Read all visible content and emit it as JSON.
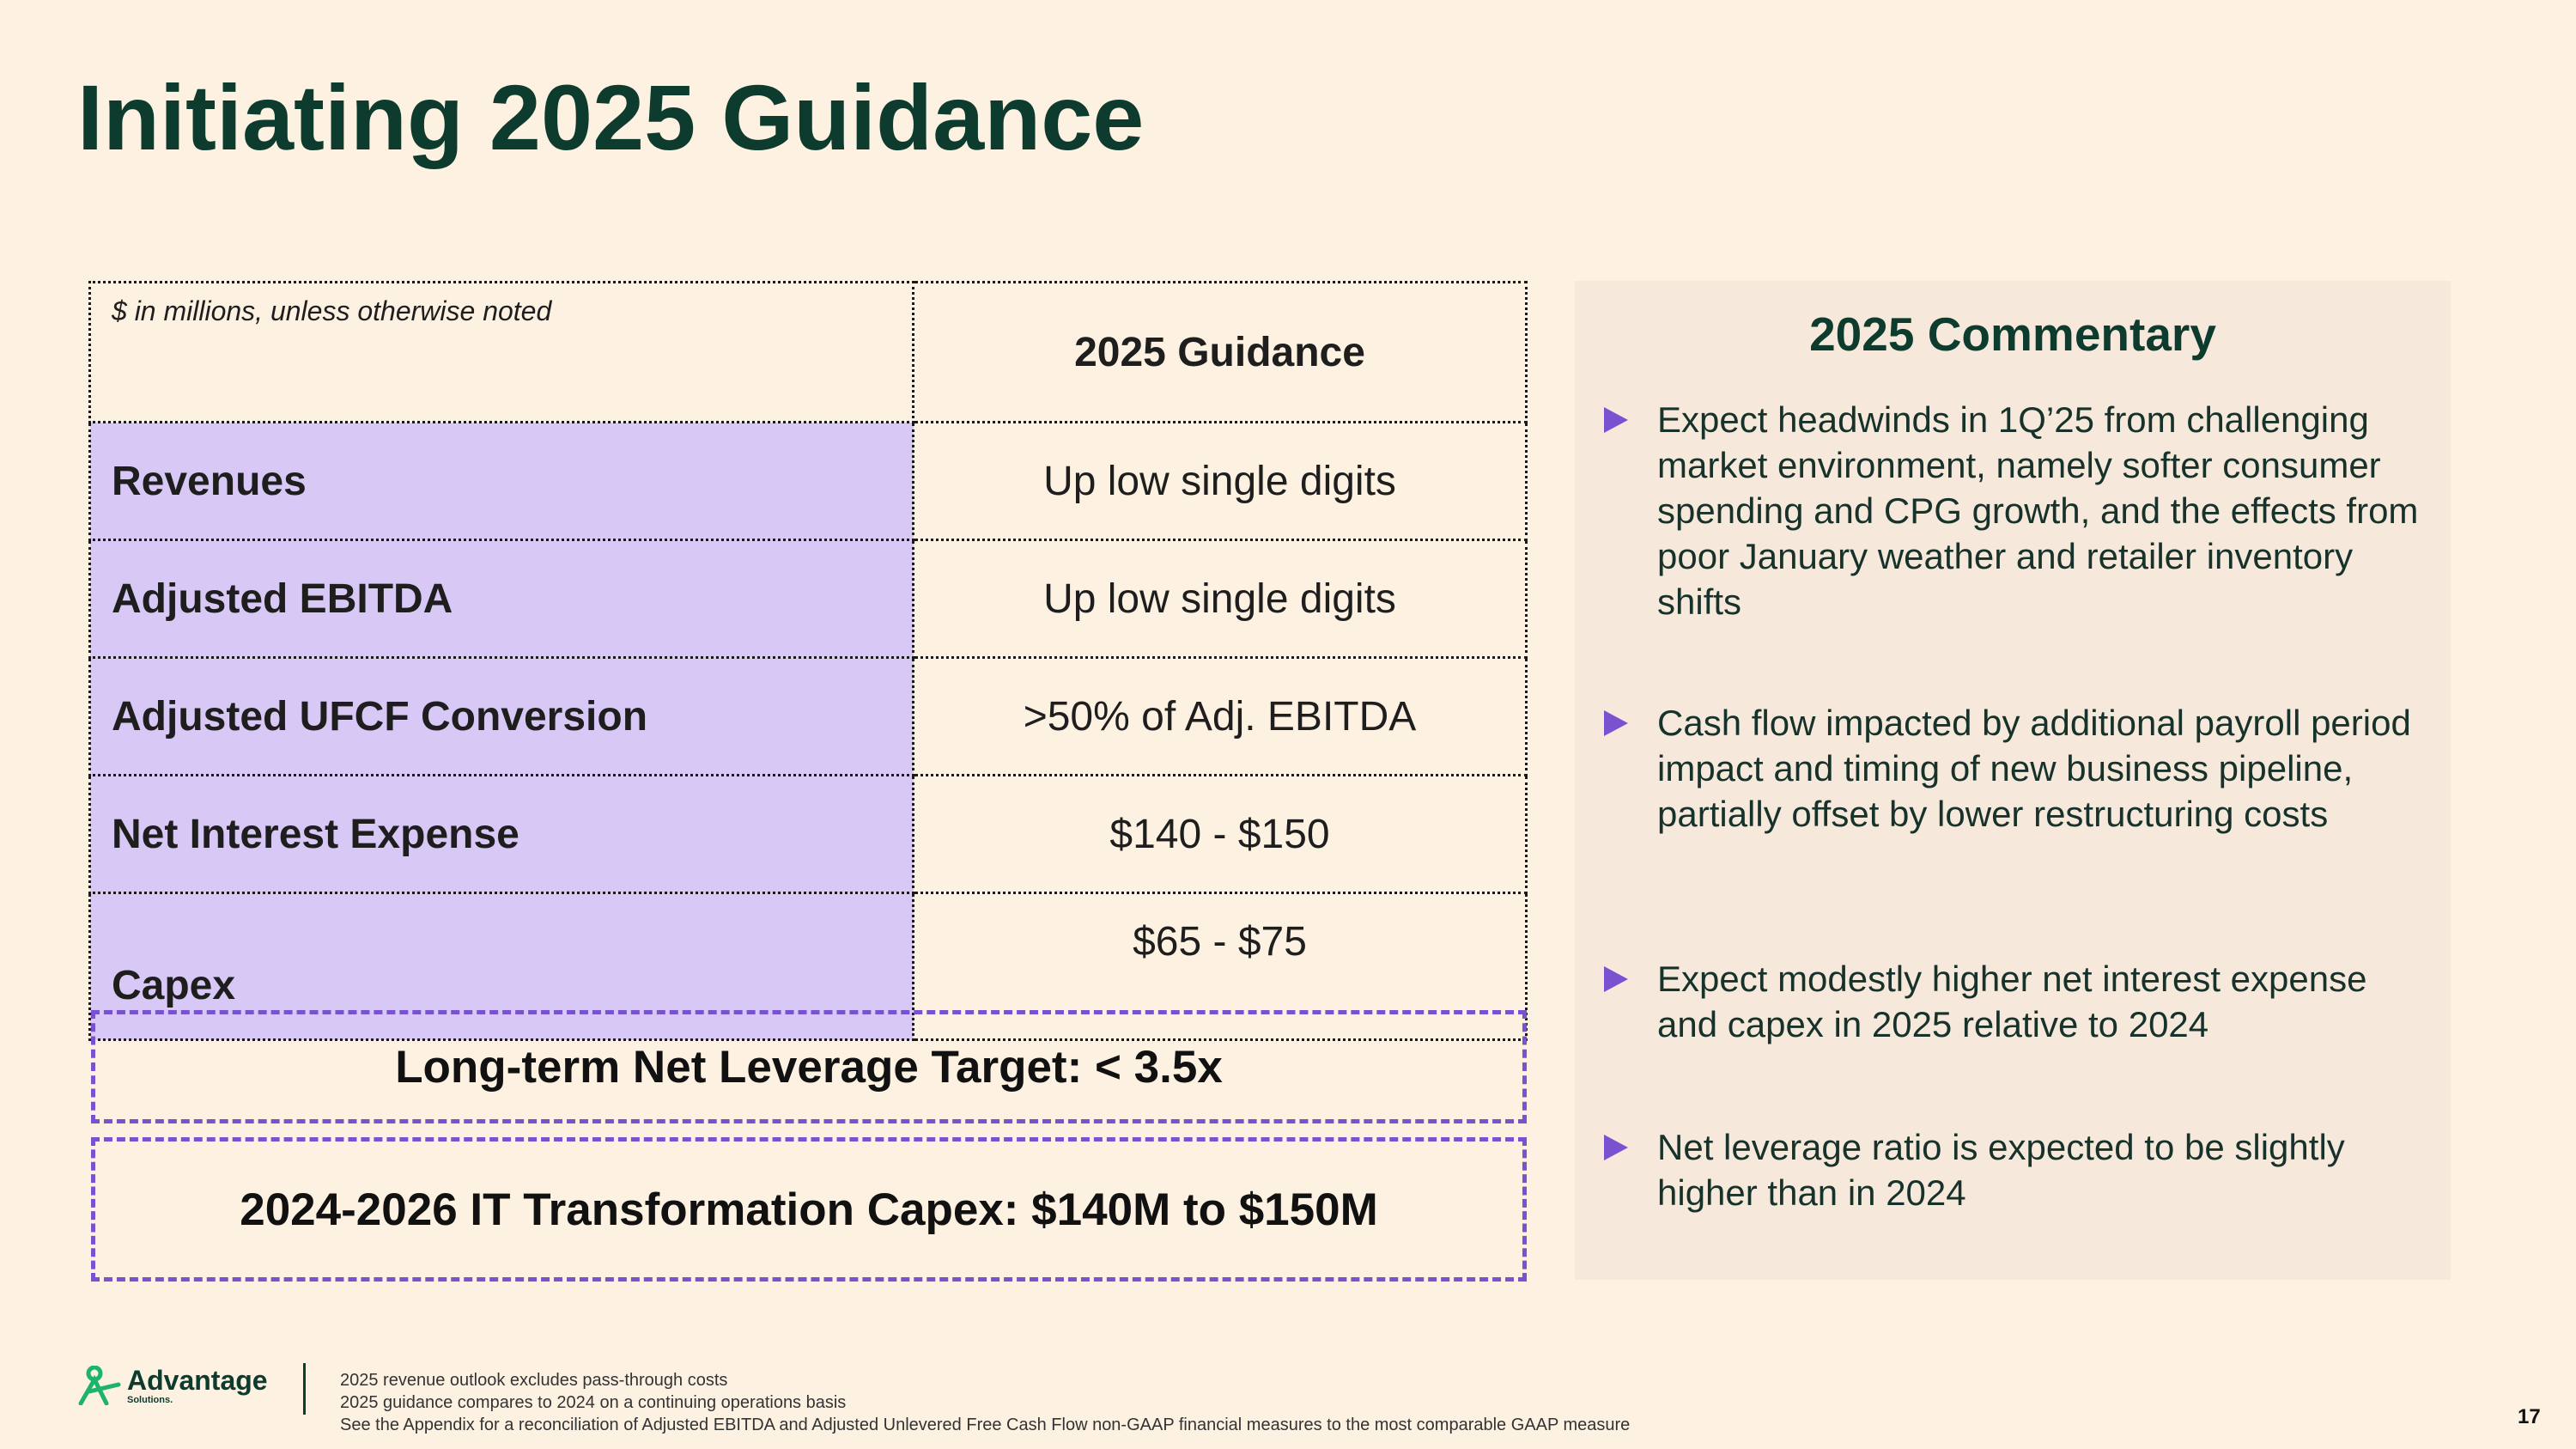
{
  "title": "Initiating 2025 Guidance",
  "table": {
    "note": "$ in millions, unless otherwise noted",
    "column_header": "2025 Guidance",
    "rows": [
      {
        "label": "Revenues",
        "value": "Up low single digits"
      },
      {
        "label": "Adjusted EBITDA",
        "value": "Up low single digits"
      },
      {
        "label": "Adjusted UFCF Conversion",
        "value": ">50% of Adj. EBITDA"
      },
      {
        "label": "Net Interest Expense",
        "value": "$140 - $150"
      },
      {
        "label": "Capex",
        "value": "$65 - $75"
      }
    ]
  },
  "callouts": {
    "leverage": "Long-term Net Leverage Target: < 3.5x",
    "it_capex": "2024-2026 IT Transformation Capex: $140M to $150M"
  },
  "commentary": {
    "heading": "2025 Commentary",
    "bullets": [
      "Expect headwinds in 1Q’25 from challenging market environment, namely softer consumer spending and CPG growth, and the effects from poor January weather and retailer inventory shifts",
      "Cash flow impacted by additional payroll period impact and timing of new business pipeline, partially offset by lower restructuring costs",
      "Expect modestly higher net interest expense and capex in 2025 relative to 2024",
      "Net leverage ratio is expected to be slightly higher than in 2024"
    ]
  },
  "footer": {
    "logo_text": "Advantage",
    "logo_subtext": "Solutions.",
    "notes": [
      "2025 revenue outlook excludes pass-through costs",
      "2025 guidance compares to 2024 on a continuing operations basis",
      "See the Appendix for a reconciliation of Adjusted EBITDA and Adjusted Unlevered Free Cash Flow non-GAAP financial measures to the most comparable GAAP measure"
    ],
    "page_number": "17"
  },
  "colors": {
    "background": "#fdf1e2",
    "title": "#0d3b2e",
    "label_fill": "#d8c8f5",
    "accent_purple": "#7a52cf",
    "commentary_bg": "#f6e9dc",
    "logo_green": "#1db36b"
  }
}
